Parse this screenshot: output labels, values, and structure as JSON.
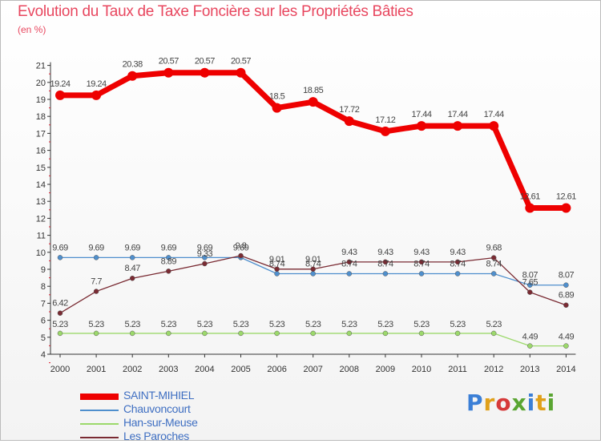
{
  "title": "Evolution du Taux de Taxe Foncière sur les Propriétés Bâties",
  "subtitle": "(en %)",
  "logo_text": "Proxiti",
  "chart_data": {
    "type": "line",
    "title": "Evolution du Taux de Taxe Foncière sur les Propriétés Bâties",
    "ylabel": "(en %)",
    "x": [
      "2000",
      "2001",
      "2002",
      "2003",
      "2004",
      "2005",
      "2006",
      "2007",
      "2008",
      "2009",
      "2010",
      "2011",
      "2012",
      "2013",
      "2014"
    ],
    "y_ticks": [
      4,
      5,
      6,
      7,
      8,
      9,
      10,
      11,
      12,
      13,
      14,
      15,
      16,
      17,
      18,
      19,
      20,
      21
    ],
    "ylim": [
      4,
      21
    ],
    "grid": false,
    "legend_position": "bottom-left",
    "series": [
      {
        "name": "SAINT-MIHIEL",
        "color": "#ee0000",
        "labels": [
          "19.24",
          "19.24",
          "20.38",
          "20.57",
          "20.57",
          "20.57",
          "18.5",
          "18.85",
          "17.72",
          "17.12",
          "17.44",
          "17.44",
          "17.44",
          "12.61",
          "12.61"
        ],
        "values": [
          19.24,
          19.24,
          20.38,
          20.57,
          20.57,
          20.57,
          18.5,
          18.85,
          17.72,
          17.12,
          17.44,
          17.44,
          17.44,
          12.61,
          12.61
        ]
      },
      {
        "name": "Chauvoncourt",
        "color": "#4f8fcd",
        "labels": [
          "9.69",
          "9.69",
          "9.69",
          "9.69",
          "9.69",
          "9.69",
          "8.74",
          "8.74",
          "8.74",
          "8.74",
          "8.74",
          "8.74",
          "8.74",
          "8.07",
          "8.07"
        ],
        "values": [
          9.69,
          9.69,
          9.69,
          9.69,
          9.69,
          9.69,
          8.74,
          8.74,
          8.74,
          8.74,
          8.74,
          8.74,
          8.74,
          8.07,
          8.07
        ]
      },
      {
        "name": "Han-sur-Meuse",
        "color": "#9cd96b",
        "labels": [
          "5.23",
          "5.23",
          "5.23",
          "5.23",
          "5.23",
          "5.23",
          "5.23",
          "5.23",
          "5.23",
          "5.23",
          "5.23",
          "5.23",
          "5.23",
          "4.49",
          "4.49"
        ],
        "values": [
          5.23,
          5.23,
          5.23,
          5.23,
          5.23,
          5.23,
          5.23,
          5.23,
          5.23,
          5.23,
          5.23,
          5.23,
          5.23,
          4.49,
          4.49
        ]
      },
      {
        "name": "Les Paroches",
        "color": "#7a2b33",
        "labels": [
          "6.42",
          "7.7",
          "8.47",
          "8.89",
          "9.33",
          "9.8",
          "9.01",
          "9.01",
          "9.43",
          "9.43",
          "9.43",
          "9.43",
          "9.68",
          "7.65",
          "6.89"
        ],
        "values": [
          6.42,
          7.7,
          8.47,
          8.89,
          9.33,
          9.8,
          9.01,
          9.01,
          9.43,
          9.43,
          9.43,
          9.43,
          9.68,
          7.65,
          6.89
        ]
      }
    ]
  }
}
